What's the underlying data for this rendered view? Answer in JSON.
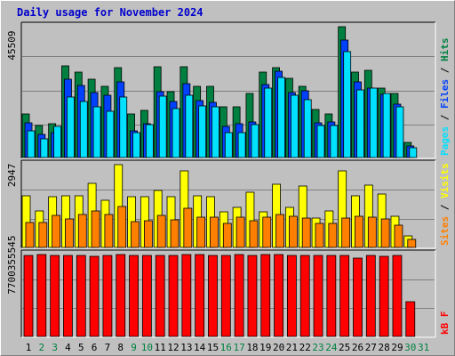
{
  "title": "Daily usage for November 2024",
  "colors": {
    "hits": "#008040",
    "files": "#0040ff",
    "pages": "#00e0ff",
    "visits": "#ffff00",
    "sites": "#ff8000",
    "kbytes": "#ff0000",
    "weekday": "#000000",
    "weekend": "#008040",
    "title": "#0000cc"
  },
  "chart_data": [
    {
      "type": "bar",
      "categories": [
        "1",
        "2",
        "3",
        "4",
        "5",
        "6",
        "7",
        "8",
        "9",
        "10",
        "11",
        "12",
        "13",
        "14",
        "15",
        "16",
        "17",
        "18",
        "19",
        "20",
        "21",
        "22",
        "23",
        "24",
        "25",
        "26",
        "27",
        "28",
        "29",
        "30",
        "31"
      ],
      "weekend_days": [
        "2",
        "3",
        "9",
        "10",
        "16",
        "17",
        "23",
        "24",
        "30",
        "31"
      ],
      "ymax_label": "45509",
      "ymax": 45509,
      "legend": [
        "Pages",
        "Files",
        "Hits"
      ],
      "series": [
        {
          "name": "Hits",
          "values": [
            15100,
            11000,
            11700,
            31900,
            29800,
            27100,
            24800,
            31300,
            15300,
            16300,
            31600,
            22800,
            31600,
            24800,
            24800,
            17500,
            17800,
            22300,
            29700,
            31400,
            27400,
            24700,
            16700,
            15300,
            45500,
            29800,
            30200,
            24000,
            22200,
            5300,
            0
          ]
        },
        {
          "name": "Files",
          "values": [
            12100,
            8200,
            8700,
            27300,
            25000,
            22500,
            21800,
            26400,
            9300,
            11800,
            22800,
            19400,
            25600,
            19900,
            19200,
            10800,
            11800,
            12400,
            25400,
            30000,
            22500,
            23100,
            12100,
            12300,
            40800,
            26300,
            24300,
            22000,
            18600,
            3900,
            0
          ]
        },
        {
          "name": "Pages",
          "values": [
            9400,
            6600,
            10700,
            21000,
            19600,
            17700,
            16100,
            21100,
            8800,
            11400,
            21500,
            17000,
            21700,
            18000,
            17800,
            8600,
            8600,
            11600,
            24100,
            27800,
            21700,
            20000,
            11000,
            11100,
            36900,
            23600,
            24000,
            22300,
            17800,
            3300,
            0
          ]
        }
      ]
    },
    {
      "type": "bar",
      "categories": [
        "1",
        "2",
        "3",
        "4",
        "5",
        "6",
        "7",
        "8",
        "9",
        "10",
        "11",
        "12",
        "13",
        "14",
        "15",
        "16",
        "17",
        "18",
        "19",
        "20",
        "21",
        "22",
        "23",
        "24",
        "25",
        "26",
        "27",
        "28",
        "29",
        "30",
        "31"
      ],
      "ymax_label": "2947",
      "ymax": 2947,
      "legend": [
        "Sites",
        "Visits"
      ],
      "series": [
        {
          "name": "Visits",
          "values": [
            1830,
            1300,
            1810,
            1830,
            1830,
            2270,
            1680,
            2940,
            1800,
            1800,
            2040,
            1820,
            2740,
            1840,
            1820,
            1260,
            1440,
            1960,
            1260,
            2240,
            1440,
            2180,
            1030,
            1310,
            2730,
            1850,
            2220,
            1910,
            1100,
            400,
            0
          ]
        },
        {
          "name": "Sites",
          "values": [
            880,
            880,
            1140,
            1020,
            1170,
            1300,
            1160,
            1450,
            910,
            960,
            1130,
            980,
            1410,
            1090,
            1070,
            860,
            1090,
            940,
            1080,
            1170,
            1110,
            1050,
            870,
            840,
            1030,
            1120,
            1070,
            1000,
            790,
            280,
            0
          ]
        }
      ]
    },
    {
      "type": "bar",
      "categories": [
        "1",
        "2",
        "3",
        "4",
        "5",
        "6",
        "7",
        "8",
        "9",
        "10",
        "11",
        "12",
        "13",
        "14",
        "15",
        "16",
        "17",
        "18",
        "19",
        "20",
        "21",
        "22",
        "23",
        "24",
        "25",
        "26",
        "27",
        "28",
        "29",
        "30",
        "31"
      ],
      "ymax_label": "7700355545",
      "ymax": 7700355545,
      "legend": [
        "kB F"
      ],
      "series": [
        {
          "name": "kB F",
          "values": [
            7590000000.0,
            7700000000.0,
            7650000000.0,
            7640000000.0,
            7590000000.0,
            7570000000.0,
            7640000000.0,
            7700000000.0,
            7640000000.0,
            7650000000.0,
            7610000000.0,
            7640000000.0,
            7680000000.0,
            7700000000.0,
            7590000000.0,
            7650000000.0,
            7680000000.0,
            7600000000.0,
            7670000000.0,
            7700000000.0,
            7650000000.0,
            7610000000.0,
            7640000000.0,
            7610000000.0,
            7600000000.0,
            7360000000.0,
            7620000000.0,
            7570000000.0,
            7620000000.0,
            3230000000.0,
            0
          ]
        }
      ]
    }
  ]
}
